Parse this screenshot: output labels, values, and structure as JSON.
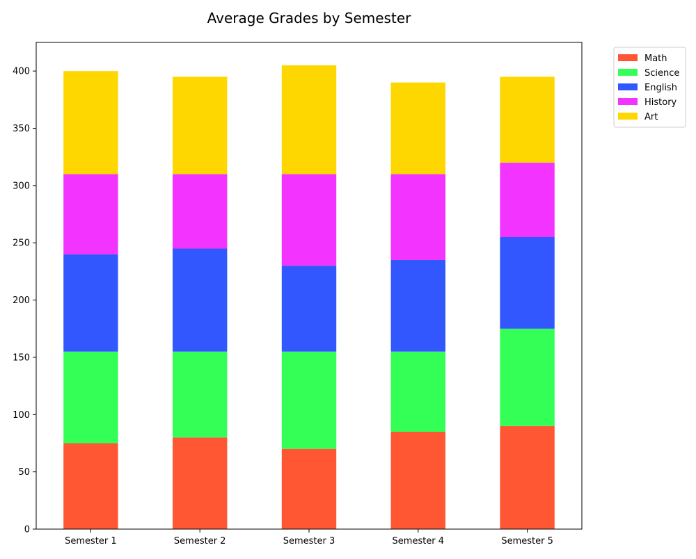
{
  "chart_data": {
    "type": "bar",
    "stacked": true,
    "title": "Average Grades by Semester",
    "xlabel": "",
    "ylabel": "",
    "categories": [
      "Semester 1",
      "Semester 2",
      "Semester 3",
      "Semester 4",
      "Semester 5"
    ],
    "series": [
      {
        "name": "Math",
        "color": "#FF5733",
        "values": [
          75,
          80,
          70,
          85,
          90
        ]
      },
      {
        "name": "Science",
        "color": "#33FF57",
        "values": [
          80,
          75,
          85,
          70,
          85
        ]
      },
      {
        "name": "English",
        "color": "#3357FF",
        "values": [
          85,
          90,
          75,
          80,
          80
        ]
      },
      {
        "name": "History",
        "color": "#F333FF",
        "values": [
          70,
          65,
          80,
          75,
          65
        ]
      },
      {
        "name": "Art",
        "color": "#FFD700",
        "values": [
          90,
          85,
          95,
          80,
          75
        ]
      }
    ],
    "ylim": [
      0,
      425
    ],
    "yticks": [
      0,
      50,
      100,
      150,
      200,
      250,
      300,
      350,
      400
    ],
    "grid": false,
    "legend_placement": "outside-top-right"
  }
}
